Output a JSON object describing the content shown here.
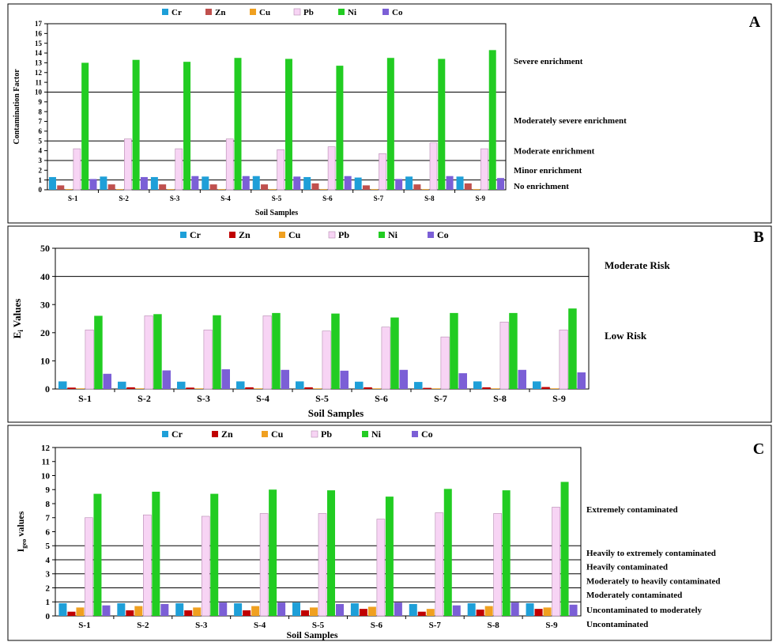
{
  "colors": {
    "Cr": "#1e9fd8",
    "Zn": "#c0504d",
    "Zn_bc": "#c00000",
    "Cu": "#f0a020",
    "Pb": "#f7d4f4",
    "Ni": "#22cc22",
    "Co": "#7b5fd6",
    "frame": "#000000"
  },
  "chart_data": [
    {
      "type": "bar",
      "panel": "A",
      "ylabel": "Contamination Factor",
      "xlabel": "Soil Samples",
      "ylim": [
        0,
        17
      ],
      "yticks": [
        0,
        1,
        2,
        3,
        4,
        5,
        6,
        7,
        8,
        9,
        10,
        11,
        12,
        13,
        14,
        15,
        16,
        17
      ],
      "categories": [
        "S-1",
        "S-2",
        "S-3",
        "S-4",
        "S-5",
        "S-6",
        "S-7",
        "S-8",
        "S-9"
      ],
      "legend": [
        "Cr",
        "Zn",
        "Cu",
        "Pb",
        "Ni",
        "Co"
      ],
      "series": [
        {
          "name": "Cr",
          "values": [
            1.3,
            1.35,
            1.3,
            1.35,
            1.4,
            1.3,
            1.25,
            1.35,
            1.35
          ]
        },
        {
          "name": "Zn",
          "values": [
            0.45,
            0.55,
            0.55,
            0.55,
            0.55,
            0.65,
            0.45,
            0.55,
            0.65
          ]
        },
        {
          "name": "Cu",
          "values": [
            0.05,
            0.05,
            0.05,
            0.05,
            0.05,
            0.05,
            0.05,
            0.05,
            0.05
          ]
        },
        {
          "name": "Pb",
          "values": [
            4.2,
            5.2,
            4.2,
            5.2,
            4.1,
            4.4,
            3.7,
            4.8,
            4.2
          ]
        },
        {
          "name": "Ni",
          "values": [
            13.0,
            13.3,
            13.1,
            13.5,
            13.4,
            12.7,
            13.5,
            13.4,
            14.3
          ]
        },
        {
          "name": "Co",
          "values": [
            1.1,
            1.3,
            1.4,
            1.4,
            1.35,
            1.4,
            1.1,
            1.4,
            1.2
          ]
        }
      ],
      "thresholds": [
        1,
        3,
        5,
        10
      ],
      "zone_labels": [
        {
          "text": "Severe enrichment",
          "y": 13.2
        },
        {
          "text": "Moderately severe enrichment",
          "y": 7.1
        },
        {
          "text": "Moderate enrichment",
          "y": 4.0
        },
        {
          "text": "Minor enrichment",
          "y": 2.0
        },
        {
          "text": "No enrichment",
          "y": 0.4
        }
      ]
    },
    {
      "type": "bar",
      "panel": "B",
      "ylabel": "Ei Values",
      "ylabel_main": "E",
      "ylabel_sub": "i",
      "ylabel_rest": " Values",
      "xlabel": "Soil Samples",
      "ylim": [
        0,
        50
      ],
      "yticks": [
        0,
        10,
        20,
        30,
        40,
        50
      ],
      "categories": [
        "S-1",
        "S-2",
        "S-3",
        "S-4",
        "S-5",
        "S-6",
        "S-7",
        "S-8",
        "S-9"
      ],
      "legend": [
        "Cr",
        "Zn",
        "Cu",
        "Pb",
        "Ni",
        "Co"
      ],
      "series": [
        {
          "name": "Cr",
          "values": [
            2.7,
            2.6,
            2.6,
            2.7,
            2.7,
            2.6,
            2.5,
            2.7,
            2.7
          ]
        },
        {
          "name": "Zn",
          "values": [
            0.5,
            0.6,
            0.5,
            0.6,
            0.6,
            0.6,
            0.4,
            0.6,
            0.7
          ]
        },
        {
          "name": "Cu",
          "values": [
            0.1,
            0.1,
            0.1,
            0.1,
            0.1,
            0.1,
            0.1,
            0.1,
            0.1
          ]
        },
        {
          "name": "Pb",
          "values": [
            21,
            26,
            21,
            26,
            20.6,
            22,
            18.5,
            23.8,
            21
          ]
        },
        {
          "name": "Ni",
          "values": [
            26,
            26.6,
            26.2,
            27,
            26.8,
            25.4,
            27,
            27,
            28.6
          ]
        },
        {
          "name": "Co",
          "values": [
            5.4,
            6.6,
            7,
            6.8,
            6.5,
            6.8,
            5.6,
            6.8,
            5.9
          ]
        }
      ],
      "thresholds": [
        40
      ],
      "zone_labels": [
        {
          "text": "Moderate Risk",
          "y": 44
        },
        {
          "text": "Low Risk",
          "y": 19
        }
      ]
    },
    {
      "type": "bar",
      "panel": "C",
      "ylabel": "Igeo values",
      "ylabel_main": "I",
      "ylabel_sub": "geo",
      "ylabel_rest": " values",
      "xlabel": "Soil Samples",
      "ylim": [
        0,
        12
      ],
      "yticks": [
        0,
        1,
        2,
        3,
        4,
        5,
        6,
        7,
        8,
        9,
        10,
        11,
        12
      ],
      "categories": [
        "S-1",
        "S-2",
        "S-3",
        "S-4",
        "S-5",
        "S-6",
        "S-7",
        "S-8",
        "S-9"
      ],
      "legend": [
        "Cr",
        "Zn",
        "Cu",
        "Pb",
        "Ni",
        "Co"
      ],
      "series": [
        {
          "name": "Cr",
          "values": [
            0.9,
            0.9,
            0.9,
            0.9,
            0.95,
            0.9,
            0.85,
            0.9,
            0.9
          ]
        },
        {
          "name": "Zn",
          "values": [
            0.3,
            0.4,
            0.4,
            0.4,
            0.4,
            0.5,
            0.3,
            0.45,
            0.5
          ]
        },
        {
          "name": "Cu",
          "values": [
            0.6,
            0.7,
            0.6,
            0.7,
            0.6,
            0.65,
            0.5,
            0.7,
            0.6
          ]
        },
        {
          "name": "Pb",
          "values": [
            7.0,
            7.2,
            7.1,
            7.3,
            7.3,
            6.9,
            7.35,
            7.3,
            7.75
          ]
        },
        {
          "name": "Ni",
          "values": [
            8.7,
            8.85,
            8.7,
            9.0,
            8.95,
            8.5,
            9.05,
            8.95,
            9.55
          ]
        },
        {
          "name": "Co",
          "values": [
            0.75,
            0.85,
            0.95,
            0.95,
            0.85,
            0.95,
            0.75,
            0.95,
            0.8
          ]
        }
      ],
      "thresholds": [
        1,
        2,
        3,
        4,
        5
      ],
      "zone_labels": [
        {
          "text": "Extremely contaminated",
          "y": 7.6
        },
        {
          "text": "Heavily to extremely contaminated",
          "y": 4.5
        },
        {
          "text": "Heavily contaminated",
          "y": 3.5
        },
        {
          "text": "Moderately to heavily contaminated",
          "y": 2.5
        },
        {
          "text": "Moderately contaminated",
          "y": 1.5
        },
        {
          "text": "Uncontaminated to moderately",
          "y": 0.45
        },
        {
          "text": "Uncontaminated",
          "y": -0.5
        }
      ]
    }
  ]
}
